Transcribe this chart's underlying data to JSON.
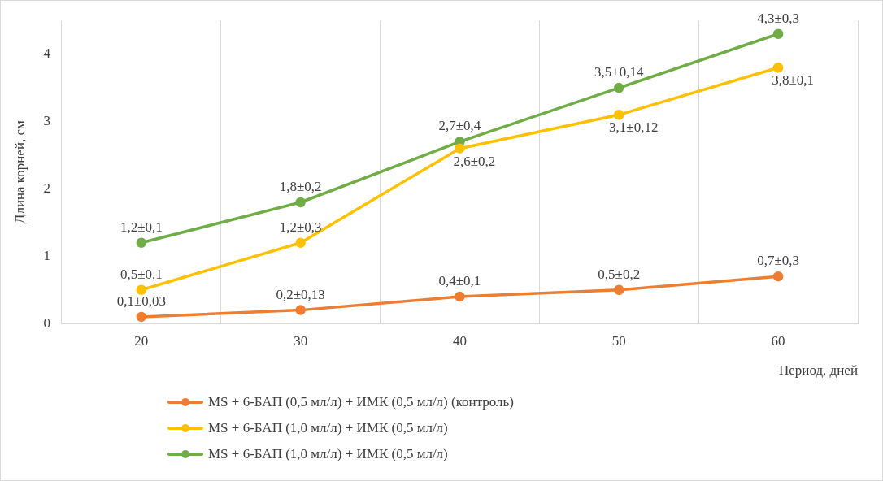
{
  "chart_data": {
    "type": "line",
    "xlabel": "Период, дней",
    "ylabel": "Длина корней, см",
    "categories": [
      "20",
      "30",
      "40",
      "50",
      "60"
    ],
    "ylim": [
      0,
      4.5
    ],
    "yticks": [
      0,
      1,
      2,
      3,
      4
    ],
    "grid": "x",
    "legend": "bottom",
    "marker": "circle",
    "line_style": "solid",
    "series": [
      {
        "name": "MS + 6-БАП (0,5 мл/л) + ИМК (0,5 мл/л) (контроль)",
        "color": "#ed7d31",
        "values": [
          0.1,
          0.2,
          0.4,
          0.5,
          0.7
        ],
        "value_labels": [
          "0,1±0,03",
          "0,2±0,13",
          "0,4±0,1",
          "0,5±0,2",
          "0,7±0,3"
        ]
      },
      {
        "name": "MS + 6-БАП (1,0 мл/л) + ИМК (0,5 мл/л)",
        "color": "#ffc000",
        "values": [
          0.5,
          1.2,
          2.6,
          3.1,
          3.8
        ],
        "value_labels": [
          "0,5±0,1",
          "1,2±0,3",
          "2,6±0,2",
          "3,1±0,12",
          "3,8±0,1"
        ]
      },
      {
        "name": "MS + 6-БАП (1,0 мл/л) + ИМК (0,5 мл/л)",
        "color": "#70ad47",
        "values": [
          1.2,
          1.8,
          2.7,
          3.5,
          4.3
        ],
        "value_labels": [
          "1,2±0,1",
          "1,8±0,2",
          "2,7±0,4",
          "3,5±0,14",
          "4,3±0,3"
        ]
      }
    ]
  }
}
